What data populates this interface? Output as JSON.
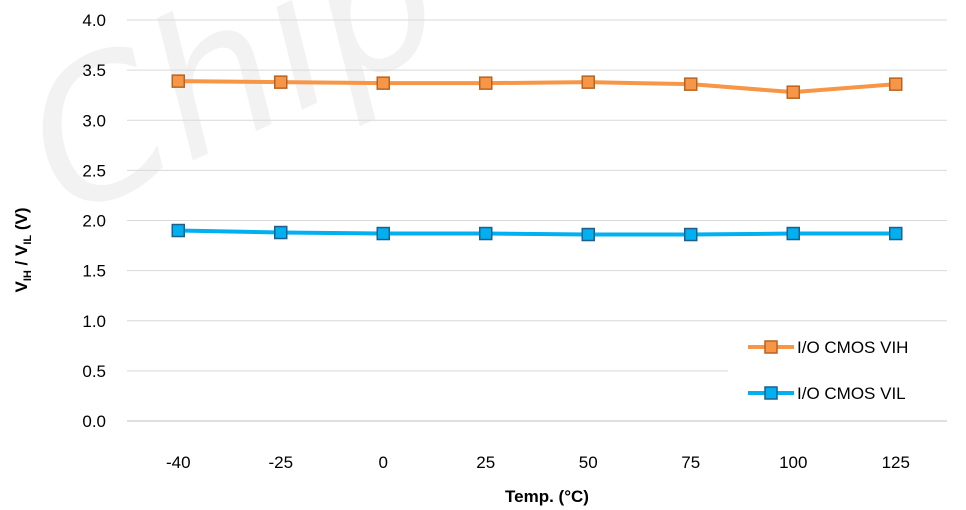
{
  "chart_data": {
    "type": "line",
    "title": "",
    "xlabel": "Temp. (°C)",
    "ylabel": {
      "prefix1": "V",
      "sub1": "IH",
      "mid": " / V",
      "sub2": "IL",
      "suffix": " (V)"
    },
    "categories": [
      "-40",
      "-25",
      "0",
      "25",
      "50",
      "75",
      "100",
      "125"
    ],
    "yticks": [
      "0.0",
      "0.5",
      "1.0",
      "1.5",
      "2.0",
      "2.5",
      "3.0",
      "3.5",
      "4.0"
    ],
    "ylim": [
      0,
      4
    ],
    "grid": true,
    "legend_position": "bottom-right",
    "series": [
      {
        "name": "I/O CMOS VIH",
        "color": "#f79646",
        "marker_edge": "#b86420",
        "values": [
          3.39,
          3.38,
          3.37,
          3.37,
          3.38,
          3.36,
          3.28,
          3.36
        ]
      },
      {
        "name": "I/O CMOS VIL",
        "color": "#00b0f0",
        "marker_edge": "#1f5f8b",
        "values": [
          1.9,
          1.88,
          1.87,
          1.87,
          1.86,
          1.86,
          1.87,
          1.87
        ]
      }
    ]
  },
  "watermark": "Chip"
}
